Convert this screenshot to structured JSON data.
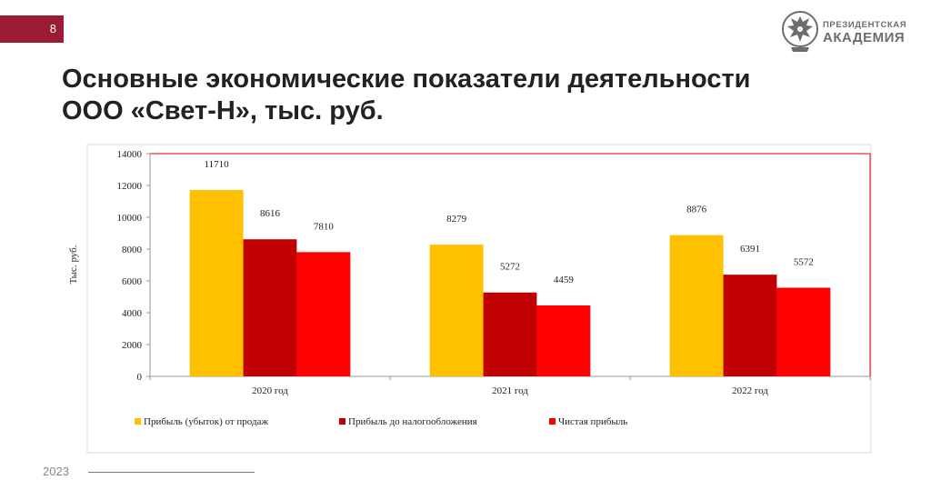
{
  "slide": {
    "number": "8",
    "footer_year": "2023",
    "accent_color": "#9a1b33"
  },
  "logo": {
    "line1": "ПРЕЗИДЕНТСКАЯ",
    "line2": "АКАДЕМИЯ",
    "icon": "eagle-emblem-icon"
  },
  "title": {
    "line1": "Основные экономические показатели деятельности",
    "line2": "ООО «Свет-Н», тыс. руб."
  },
  "chart_data": {
    "type": "bar",
    "title": "Основные экономические показатели деятельности ООО «Свет-Н», тыс. руб.",
    "xlabel": "",
    "ylabel": "Тыс. руб.",
    "ylim": [
      0,
      14000
    ],
    "yticks": [
      0,
      2000,
      4000,
      6000,
      8000,
      10000,
      12000,
      14000
    ],
    "grid": false,
    "legend_position": "bottom",
    "categories": [
      "2020 год",
      "2021 год",
      "2022 год"
    ],
    "series": [
      {
        "name": "Прибыль (убыток) от продаж",
        "color": "#ffc000",
        "values": [
          11710,
          8279,
          8876
        ]
      },
      {
        "name": "Прибыль до налогообложения",
        "color": "#c00000",
        "values": [
          8616,
          5272,
          6391
        ]
      },
      {
        "name": "Чистая прибыль",
        "color": "#ff0000",
        "values": [
          7810,
          4459,
          5572
        ]
      }
    ]
  }
}
